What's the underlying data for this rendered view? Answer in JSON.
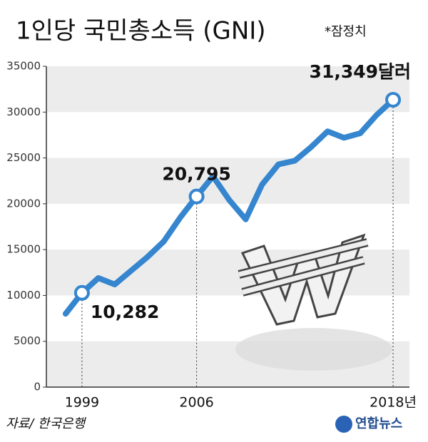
{
  "chart_data": {
    "type": "line",
    "title": "1인당 국민총소득 (GNI)",
    "note": "*잠정치",
    "source": "자료/ 한국은행",
    "logo": "연합뉴스",
    "x": [
      1998,
      1999,
      2000,
      2001,
      2002,
      2003,
      2004,
      2005,
      2006,
      2007,
      2008,
      2009,
      2010,
      2011,
      2012,
      2013,
      2014,
      2015,
      2016,
      2017,
      2018
    ],
    "values": [
      8000,
      10282,
      11900,
      11200,
      12700,
      14200,
      15900,
      18500,
      20795,
      23000,
      20400,
      18300,
      22100,
      24300,
      24700,
      26200,
      27900,
      27200,
      27700,
      29700,
      31349
    ],
    "value_labels": [
      null,
      "10,282",
      null,
      null,
      null,
      null,
      null,
      null,
      "20,795",
      null,
      null,
      null,
      null,
      null,
      null,
      null,
      null,
      null,
      null,
      null,
      "31,349달러"
    ],
    "color": "#3585cf",
    "xlim": [
      1997,
      2019
    ],
    "xticks": [
      1999,
      2006,
      {
        "value": 2018,
        "label": "2018년"
      }
    ],
    "ylim": [
      0,
      35000
    ],
    "yticks": [
      0,
      5000,
      10000,
      15000,
      20000,
      25000,
      30000,
      35000
    ],
    "grid": "bands"
  }
}
